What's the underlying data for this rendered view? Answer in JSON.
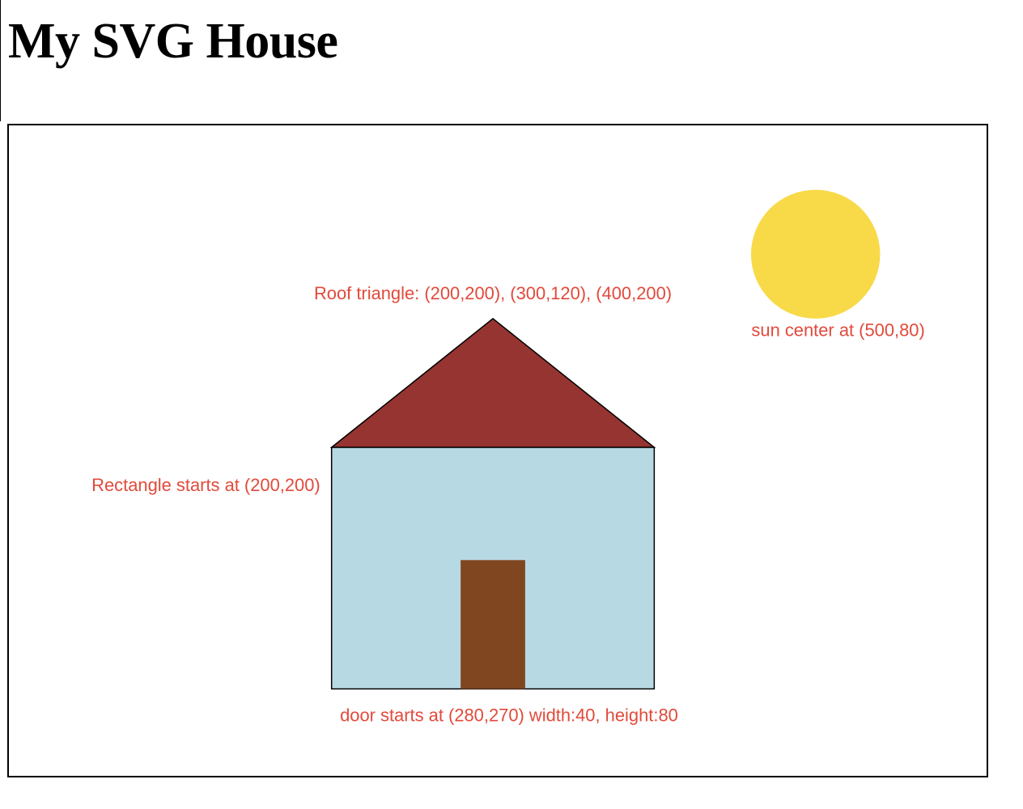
{
  "page": {
    "title": "My SVG House"
  },
  "colors": {
    "sun": "#f8d948",
    "roof": "#963431",
    "walls": "#b7d9e4",
    "door": "#804620",
    "outline": "#000000",
    "annotation": "#e14a3b"
  },
  "annotations": {
    "roof": "Roof triangle: (200,200), (300,120), (400,200)",
    "sun": "sun center at (500,80)",
    "rectangle": "Rectangle starts at (200,200)",
    "door": "door starts at (280,270) width:40, height:80"
  }
}
